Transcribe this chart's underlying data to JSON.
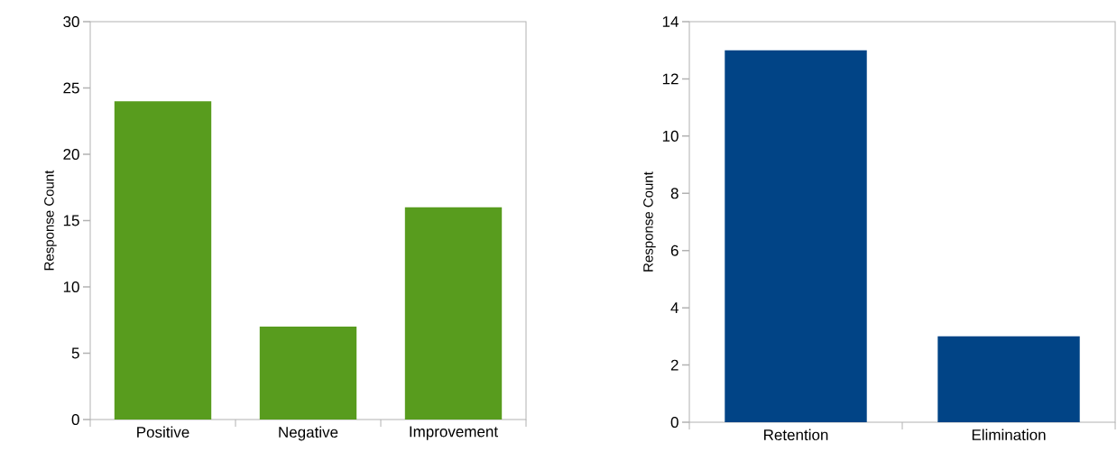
{
  "chart_data": [
    {
      "type": "bar",
      "ylabel": "Response Count",
      "categories": [
        "Positive",
        "Negative",
        "Improvement"
      ],
      "values": [
        24,
        7,
        16
      ],
      "color": "#589c1e",
      "ylim": [
        0,
        30
      ],
      "yticks": [
        0,
        5,
        10,
        15,
        20,
        25,
        30
      ],
      "grid": false
    },
    {
      "type": "bar",
      "ylabel": "Response Count",
      "categories": [
        "Retention",
        "Elimination"
      ],
      "values": [
        13,
        3
      ],
      "color": "#014486",
      "ylim": [
        0,
        14
      ],
      "yticks": [
        0,
        2,
        4,
        6,
        8,
        10,
        12,
        14
      ],
      "grid": false
    }
  ]
}
